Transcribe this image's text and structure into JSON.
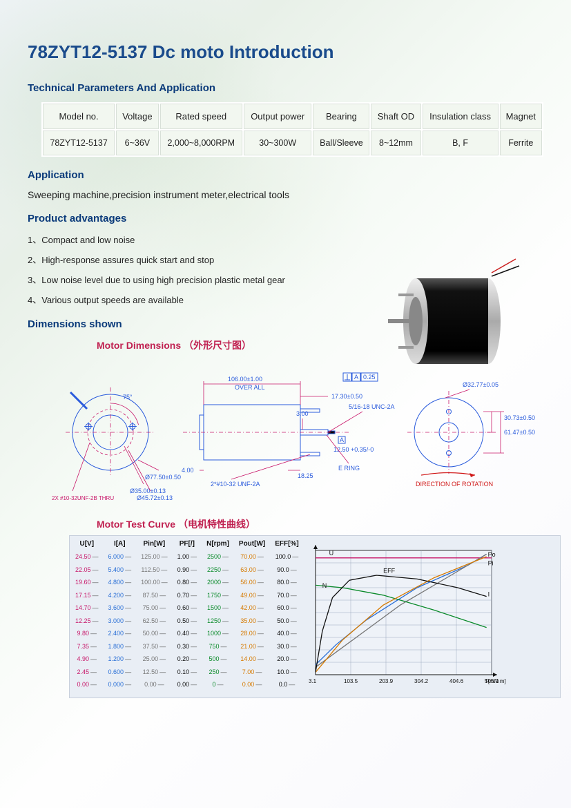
{
  "title": "78ZYT12-5137 Dc moto Introduction",
  "sections": {
    "spec_heading": "Technical Parameters And Application",
    "app_heading": "Application",
    "app_text": "Sweeping machine,precision instrument meter,electrical tools",
    "adv_heading": "Product advantages",
    "dim_heading": "Dimensions shown",
    "dim_title": "Motor  Dimensions   （外形尺寸图）",
    "curve_title": "Motor  Test  Curve （电机特性曲线）"
  },
  "spec_table": {
    "headers": [
      "Model no.",
      "Voltage",
      "Rated speed",
      "Output power",
      "Bearing",
      "Shaft OD",
      "Insulation class",
      "Magnet"
    ],
    "row": [
      "78ZYT12-5137",
      "6~36V",
      "2,000~8,000RPM",
      "30~300W",
      "Ball/Sleeve",
      "8~12mm",
      "B, F",
      "Ferrite"
    ]
  },
  "advantages": [
    "1、Compact and low noise",
    "2、High-response assures quick start and stop",
    "3、Low noise level due to using high precision plastic metal gear",
    "4、Various output speeds are available"
  ],
  "dimensions_drawing": {
    "colors": {
      "outline": "#2a5bdc",
      "dim": "#c8186a",
      "text": "#2a5bdc",
      "rot": "#d01818"
    },
    "left_circle": {
      "d_outer": "Ø77.50±0.50",
      "d_pcd": "Ø45.72±0.13",
      "d_bore": "Ø35.00±0.13",
      "angle": "75°",
      "thru": "2X #10-32UNF-2B THRU"
    },
    "side": {
      "overall": "106.00±1.00",
      "overall_lbl": "OVER ALL",
      "front": "4.00",
      "thread": "2*#10-32 UNF-2A",
      "a_box": "A",
      "a_tol": "0.25",
      "shaft_l": "17.30±0.50",
      "shaft_thread": "5/16-18 UNC-2A",
      "shaft_step": "12.50 +0.35/-0",
      "shaft_ering": "E RING",
      "shaft_d": "3.00",
      "rear": "18.25"
    },
    "right_circle": {
      "d_outer": "Ø32.77±0.05",
      "d_pcd": "61.47±0.50",
      "hole_off": "30.73±0.50",
      "rot": "DIRECTION OF ROTATION"
    }
  },
  "test_curve": {
    "columns": [
      {
        "header": "U[V]",
        "color": "#c8186a",
        "values": [
          "24.50",
          "22.05",
          "19.60",
          "17.15",
          "14.70",
          "12.25",
          "9.80",
          "7.35",
          "4.90",
          "2.45",
          "0.00"
        ]
      },
      {
        "header": "I[A]",
        "color": "#2a6fd6",
        "values": [
          "6.000",
          "5.400",
          "4.800",
          "4.200",
          "3.600",
          "3.000",
          "2.400",
          "1.800",
          "1.200",
          "0.600",
          "0.000"
        ]
      },
      {
        "header": "Pin[W]",
        "color": "#777",
        "values": [
          "125.00",
          "112.50",
          "100.00",
          "87.50",
          "75.00",
          "62.50",
          "50.00",
          "37.50",
          "25.00",
          "12.50",
          "0.00"
        ]
      },
      {
        "header": "PF[/]",
        "color": "#111",
        "values": [
          "1.00",
          "0.90",
          "0.80",
          "0.70",
          "0.60",
          "0.50",
          "0.40",
          "0.30",
          "0.20",
          "0.10",
          "0.00"
        ]
      },
      {
        "header": "N[rpm]",
        "color": "#0a8a2a",
        "values": [
          "2500",
          "2250",
          "2000",
          "1750",
          "1500",
          "1250",
          "1000",
          "750",
          "500",
          "250",
          "0"
        ]
      },
      {
        "header": "Pout[W]",
        "color": "#d67a00",
        "values": [
          "70.00",
          "63.00",
          "56.00",
          "49.00",
          "42.00",
          "35.00",
          "28.00",
          "21.00",
          "14.00",
          "7.00",
          "0.00"
        ]
      },
      {
        "header": "EFF[%]",
        "color": "#111",
        "values": [
          "100.0",
          "90.0",
          "80.0",
          "70.0",
          "60.0",
          "50.0",
          "40.0",
          "30.0",
          "20.0",
          "10.0",
          "0.0"
        ]
      }
    ],
    "chart": {
      "xlim": [
        0,
        520
      ],
      "ylim": [
        0,
        100
      ],
      "xticks": [
        "3.1",
        "103.5",
        "203.9",
        "304.2",
        "404.6",
        "505.0"
      ],
      "xlabel": "T[mN.m]",
      "grid_color": "#9aa7bd",
      "bg": "#eef2f8",
      "labels": {
        "U": "U",
        "Po": "Po",
        "Pi": "Pi",
        "EFF": "EFF",
        "N": "N",
        "I": "I"
      },
      "series": {
        "U": {
          "color": "#c8186a",
          "pts": [
            [
              0,
              94
            ],
            [
              520,
              94
            ]
          ]
        },
        "I": {
          "color": "#2a6fd6",
          "pts": [
            [
              0,
              8
            ],
            [
              60,
              24
            ],
            [
              150,
              44
            ],
            [
              300,
              70
            ],
            [
              450,
              88
            ],
            [
              505,
              97
            ]
          ]
        },
        "Pin": {
          "color": "#777777",
          "pts": [
            [
              0,
              6
            ],
            [
              100,
              26
            ],
            [
              250,
              56
            ],
            [
              400,
              80
            ],
            [
              505,
              97
            ]
          ]
        },
        "N": {
          "color": "#0a8a2a",
          "pts": [
            [
              0,
              72
            ],
            [
              80,
              70
            ],
            [
              200,
              64
            ],
            [
              350,
              52
            ],
            [
              505,
              38
            ]
          ]
        },
        "Pout": {
          "color": "#d67a00",
          "pts": [
            [
              0,
              2
            ],
            [
              80,
              28
            ],
            [
              200,
              56
            ],
            [
              350,
              78
            ],
            [
              505,
              95
            ]
          ]
        },
        "EFF": {
          "color": "#111111",
          "pts": [
            [
              0,
              2
            ],
            [
              20,
              35
            ],
            [
              50,
              62
            ],
            [
              100,
              76
            ],
            [
              180,
              80
            ],
            [
              300,
              77
            ],
            [
              420,
              70
            ],
            [
              505,
              63
            ]
          ]
        }
      }
    }
  }
}
